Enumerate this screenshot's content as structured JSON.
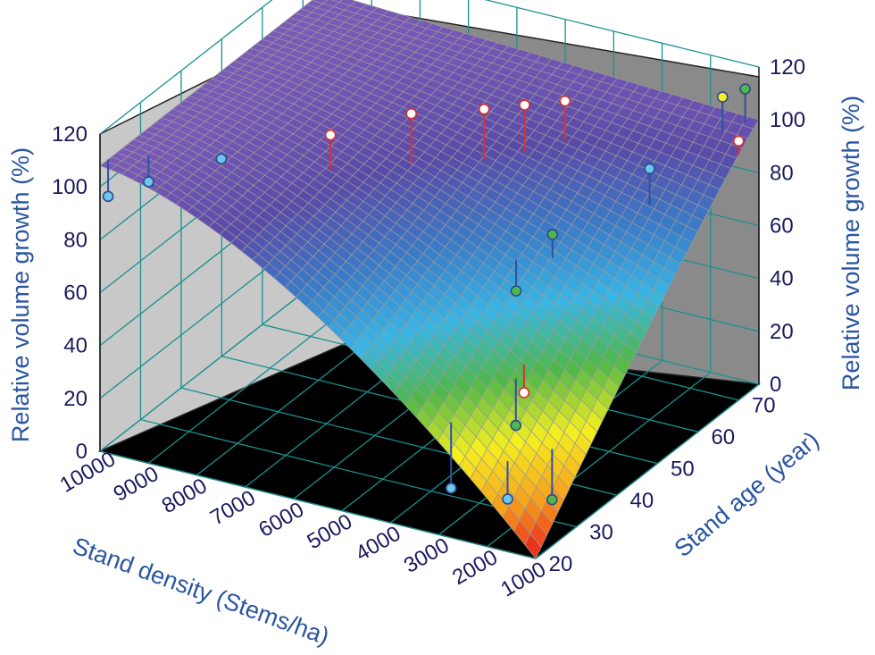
{
  "chart_data": {
    "type": "surface3d",
    "title": "",
    "zlabel_left": "Relative volume growth (%)",
    "zlabel_right": "Relative volume growth (%)",
    "xlabel": "Stand density (Stems/ha)",
    "ylabel": "Stand age (year)",
    "x_ticks": [
      "10000",
      "9000",
      "8000",
      "7000",
      "6000",
      "5000",
      "4000",
      "3000",
      "2000",
      "1000"
    ],
    "y_ticks": [
      "20",
      "30",
      "40",
      "50",
      "60",
      "70"
    ],
    "z_ticks_left": [
      "0",
      "20",
      "40",
      "60",
      "80",
      "100",
      "120"
    ],
    "z_ticks_right": [
      "0",
      "20",
      "40",
      "60",
      "80",
      "100",
      "120"
    ],
    "xlim": [
      1000,
      10000
    ],
    "ylim": [
      20,
      75
    ],
    "zlim": [
      0,
      120
    ],
    "colormap": [
      "#e8141c",
      "#f7a21b",
      "#f5f020",
      "#4fb848",
      "#38b6e6",
      "#3a7bc8",
      "#5a4aa8",
      "#7a5ab8"
    ],
    "floor_color": "#000000",
    "grid_color": "#1a9090",
    "mesh_color": "#9a9a9a",
    "points": [
      {
        "x": 10000,
        "y": 22,
        "z": 94,
        "color": "#6ec6ea"
      },
      {
        "x": 9500,
        "y": 26,
        "z": 97,
        "color": "#6ec6ea"
      },
      {
        "x": 8500,
        "y": 32,
        "z": 103,
        "color": "#6ec6ea"
      },
      {
        "x": 7000,
        "y": 41,
        "z": 108,
        "color": "#ffffff"
      },
      {
        "x": 6000,
        "y": 49,
        "z": 111,
        "color": "#ffffff"
      },
      {
        "x": 5000,
        "y": 55,
        "z": 110,
        "color": "#ffffff"
      },
      {
        "x": 4500,
        "y": 59,
        "z": 109,
        "color": "#ffffff"
      },
      {
        "x": 4000,
        "y": 63,
        "z": 108,
        "color": "#ffffff"
      },
      {
        "x": 1500,
        "y": 30,
        "z": 8,
        "color": "#4fb848"
      },
      {
        "x": 2000,
        "y": 25,
        "z": 12,
        "color": "#6ec6ea"
      },
      {
        "x": 2500,
        "y": 33,
        "z": 28,
        "color": "#4fb848"
      },
      {
        "x": 2500,
        "y": 35,
        "z": 38,
        "color": "#ffffff"
      },
      {
        "x": 3000,
        "y": 23,
        "z": 14,
        "color": "#6ec6ea"
      },
      {
        "x": 3500,
        "y": 45,
        "z": 60,
        "color": "#4fb848"
      },
      {
        "x": 3000,
        "y": 48,
        "z": 80,
        "color": "#4fb848"
      },
      {
        "x": 2000,
        "y": 60,
        "z": 95,
        "color": "#6ec6ea"
      },
      {
        "x": 1500,
        "y": 72,
        "z": 110,
        "color": "#f5f020"
      },
      {
        "x": 1200,
        "y": 74,
        "z": 112,
        "color": "#4fb848"
      },
      {
        "x": 1000,
        "y": 70,
        "z": 98,
        "color": "#ffffff"
      }
    ]
  }
}
